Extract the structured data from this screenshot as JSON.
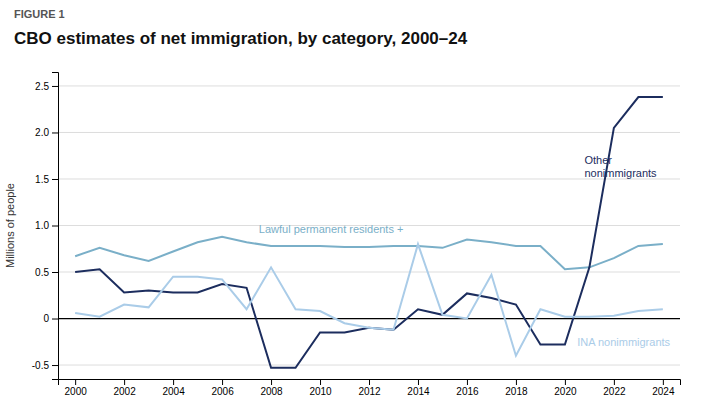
{
  "chart_data": {
    "type": "line",
    "subtitle": "FIGURE 1",
    "title": "CBO estimates of net immigration, by category, 2000–24",
    "y_label": "Millions of people",
    "x": [
      2000,
      2001,
      2002,
      2003,
      2004,
      2005,
      2006,
      2007,
      2008,
      2009,
      2010,
      2011,
      2012,
      2013,
      2014,
      2015,
      2016,
      2017,
      2018,
      2019,
      2020,
      2021,
      2022,
      2023,
      2024
    ],
    "series": [
      {
        "color": "#7aafc8",
        "values": [
          0.67,
          0.76,
          0.68,
          0.62,
          0.72,
          0.82,
          0.88,
          0.82,
          0.78,
          0.78,
          0.78,
          0.77,
          0.77,
          0.78,
          0.78,
          0.76,
          0.85,
          0.82,
          0.78,
          0.78,
          0.53,
          0.55,
          0.65,
          0.78,
          0.8
        ]
      },
      {
        "color": "#1c2d5e",
        "values": [
          0.5,
          0.53,
          0.28,
          0.3,
          0.28,
          0.28,
          0.37,
          0.33,
          -0.53,
          -0.53,
          -0.15,
          -0.15,
          -0.1,
          -0.12,
          0.1,
          0.04,
          0.27,
          0.22,
          0.15,
          -0.28,
          -0.28,
          0.55,
          2.05,
          2.38,
          2.38
        ]
      },
      {
        "color": "#aacce8",
        "values": [
          0.06,
          0.02,
          0.15,
          0.12,
          0.45,
          0.45,
          0.42,
          0.1,
          0.55,
          0.1,
          0.08,
          -0.05,
          -0.1,
          -0.12,
          0.8,
          0.04,
          0.0,
          0.47,
          -0.4,
          0.1,
          0.02,
          0.02,
          0.03,
          0.08,
          0.1
        ]
      }
    ],
    "annotations": [
      {
        "text": "Lawful permanent residents +",
        "x": 2007.5,
        "y": 1.04,
        "color": "#7aafc8"
      },
      {
        "text": "Other\nnonimmigrants",
        "x": 2020.8,
        "y": 1.78,
        "color": "#1c2d5e"
      },
      {
        "text": "INA nonimmigrants",
        "x": 2020.5,
        "y": -0.18,
        "color": "#aacce8"
      }
    ],
    "xlim": [
      1999.3,
      2024.7
    ],
    "xticks": [
      2000,
      2002,
      2004,
      2006,
      2008,
      2010,
      2012,
      2014,
      2016,
      2018,
      2020,
      2022,
      2024
    ],
    "ylim": [
      -0.65,
      2.65
    ],
    "yticks": [
      -0.5,
      0,
      0.5,
      {
        "value": 1.0,
        "label": "1.0"
      },
      1.5,
      {
        "value": 2.0,
        "label": "2.0"
      },
      2.5
    ],
    "grid": true
  }
}
